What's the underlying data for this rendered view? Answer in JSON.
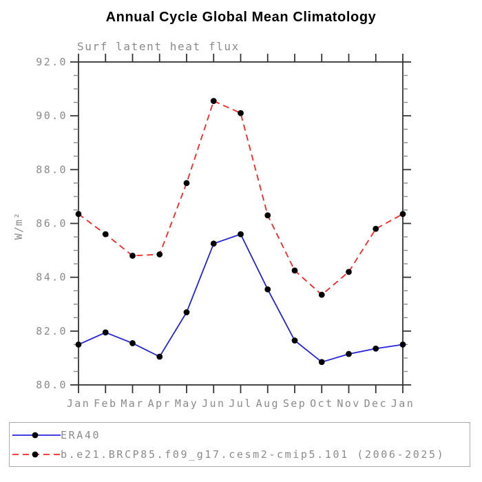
{
  "header": {
    "title": "Annual Cycle Global Mean Climatology",
    "subtitle": "Surf latent heat flux"
  },
  "chart_data": {
    "type": "line",
    "title": "Annual Cycle Global Mean Climatology",
    "subtitle": "Surf latent heat flux",
    "xlabel": "",
    "ylabel": "W/m²",
    "categories": [
      "Jan",
      "Feb",
      "Mar",
      "Apr",
      "May",
      "Jun",
      "Jul",
      "Aug",
      "Sep",
      "Oct",
      "Nov",
      "Dec",
      "Jan"
    ],
    "ylim": [
      80.0,
      92.0
    ],
    "ytick_major_step": 2.0,
    "ytick_minor_step": 0.5,
    "ytick_labels": [
      "80.0",
      "82.0",
      "84.0",
      "86.0",
      "88.0",
      "90.0",
      "92.0"
    ],
    "grid": false,
    "legend_position": "bottom",
    "series": [
      {
        "id": "era40",
        "name": "ERA40",
        "color": "#2222dd",
        "line_style": "solid",
        "marker": "filled-circle",
        "marker_color": "#000000",
        "values": [
          81.5,
          81.95,
          81.55,
          81.05,
          82.7,
          85.25,
          85.6,
          83.55,
          81.65,
          80.85,
          81.15,
          81.35,
          81.5
        ]
      },
      {
        "id": "cesm2-model",
        "name": "b.e21.BRCP85.f09_g17.cesm2-cmip5.101 (2006-2025)",
        "color": "#ff2222",
        "line_style": "dashed",
        "marker": "filled-circle",
        "marker_color": "#000000",
        "values": [
          86.35,
          85.6,
          84.8,
          84.85,
          87.5,
          90.55,
          90.1,
          86.3,
          84.25,
          83.35,
          84.2,
          85.8,
          86.35
        ]
      }
    ]
  },
  "colors": {
    "frame": "#333333",
    "minor_tick": "#888888",
    "tick_text": "#8a8a8a",
    "legend_border": "#aaaaaa",
    "title_text": "#000000"
  }
}
